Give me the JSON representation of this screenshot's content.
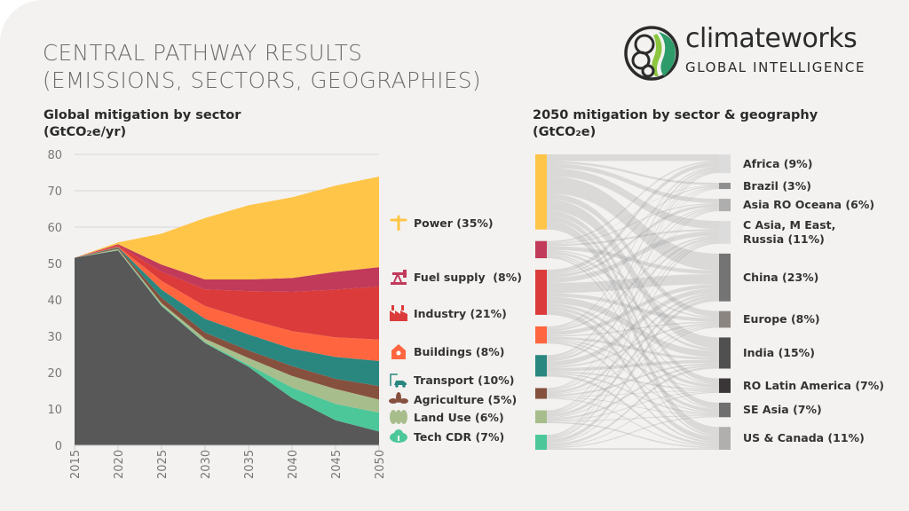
{
  "header": {
    "title_line1": "CENTRAL PATHWAY RESULTS",
    "title_line2": "(EMISSIONS, SECTORS, GEOGRAPHIES)"
  },
  "logo": {
    "name": "climateworks",
    "tagline": "GLOBAL INTELLIGENCE",
    "colors": [
      "#8cc63f",
      "#2e9b6b"
    ]
  },
  "chart_data": [
    {
      "type": "area",
      "stacked": true,
      "title_line1": "Global mitigation by sector",
      "title_line2": "(GtCO₂e/yr)",
      "x": [
        2015,
        2020,
        2025,
        2030,
        2035,
        2040,
        2045,
        2050
      ],
      "x_tick_labels": [
        "2015",
        "2020",
        "2025",
        "2030",
        "2035",
        "2040",
        "2045",
        "2050"
      ],
      "ylim": [
        0,
        80
      ],
      "y_ticks": [
        0,
        10,
        20,
        30,
        40,
        50,
        60,
        70,
        80
      ],
      "grid": true,
      "legend_placement": "right",
      "series": [
        {
          "values": [
            51.6,
            53.6,
            38.3,
            28.1,
            21.6,
            13.0,
            6.9,
            3.8
          ],
          "color": "#585858"
        },
        {
          "name": "Tech CDR (7%)",
          "values": [
            0,
            0.1,
            0.2,
            0.2,
            0.5,
            2.9,
            4.5,
            5.2
          ],
          "color": "#4cc799",
          "icon": "cloud-tree-icon"
        },
        {
          "name": "Land Use (6%)",
          "values": [
            0,
            0.3,
            0.6,
            1.0,
            1.9,
            3.2,
            4.1,
            3.6
          ],
          "color": "#a8bd8c",
          "icon": "trees-icon"
        },
        {
          "name": "Agriculture (5%)",
          "values": [
            0,
            0.3,
            1.5,
            1.7,
            2.1,
            2.7,
            2.8,
            3.7
          ],
          "color": "#86503e",
          "icon": "leaves-icon"
        },
        {
          "name": "Transport (10%)",
          "values": [
            0,
            0.2,
            2.2,
            3.8,
            4.4,
            4.8,
            6.0,
            6.9
          ],
          "color": "#2a8780",
          "icon": "electric-car-icon"
        },
        {
          "name": "Buildings (8%)",
          "values": [
            0,
            0.2,
            2.4,
            3.5,
            4.1,
            4.8,
            5.4,
            5.9
          ],
          "color": "#ff6640",
          "icon": "house-icon"
        },
        {
          "name": "Industry (21%)",
          "values": [
            0,
            0.3,
            2.5,
            4.6,
            7.8,
            10.8,
            13.1,
            14.6
          ],
          "color": "#db3b3a",
          "icon": "factory-icon"
        },
        {
          "name": "Fuel supply  (8%)",
          "values": [
            0,
            0.3,
            2.0,
            2.7,
            3.2,
            3.8,
            4.9,
            5.3
          ],
          "color": "#c13a5a",
          "icon": "oil-pump-icon"
        },
        {
          "name": "Power (35%)",
          "values": [
            0,
            0.5,
            8.5,
            16.9,
            20.4,
            22.2,
            23.7,
            24.9
          ],
          "color": "#ffc548",
          "icon": "wind-turbine-icon"
        }
      ]
    },
    {
      "type": "sankey",
      "title_line1": "2050 mitigation by sector & geography",
      "title_line2": "(GtCO₂e)",
      "sources": [
        {
          "share": 35,
          "color": "#ffc548"
        },
        {
          "share": 8,
          "color": "#c13a5a"
        },
        {
          "share": 21,
          "color": "#db3b3a"
        },
        {
          "share": 8,
          "color": "#ff6640"
        },
        {
          "share": 10,
          "color": "#2a8780"
        },
        {
          "share": 5,
          "color": "#86503e"
        },
        {
          "share": 6,
          "color": "#a8bd8c"
        },
        {
          "share": 7,
          "color": "#4cc799"
        }
      ],
      "targets": [
        {
          "label": "Africa (9%)",
          "share": 9,
          "color": "#dcdcdc"
        },
        {
          "label": "Brazil (3%)",
          "share": 3,
          "color": "#8e8e8e"
        },
        {
          "label": "Asia RO Oceana (6%)",
          "share": 6,
          "color": "#aeaeae"
        },
        {
          "label": "C Asia, M East,",
          "label2": "Russia (11%)",
          "share": 11,
          "color": "#dcdcdc"
        },
        {
          "label": "China (23%)",
          "share": 23,
          "color": "#747474"
        },
        {
          "label": "Europe (8%)",
          "share": 8,
          "color": "#8a8580"
        },
        {
          "label": "India (15%)",
          "share": 15,
          "color": "#505050"
        },
        {
          "label": "RO Latin America (7%)",
          "share": 7,
          "color": "#3a3536"
        },
        {
          "label": "SE Asia (7%)",
          "share": 7,
          "color": "#6f6f6f"
        },
        {
          "label": "US & Canada (11%)",
          "share": 11,
          "color": "#b0afad"
        }
      ]
    }
  ]
}
